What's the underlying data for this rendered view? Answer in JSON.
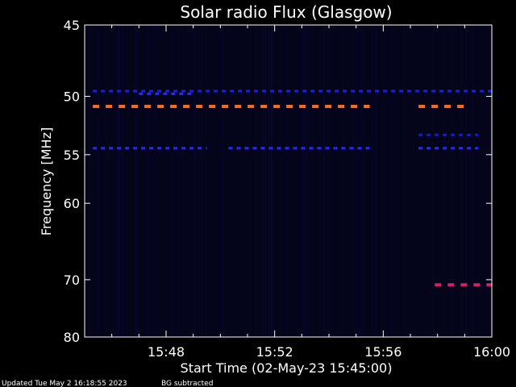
{
  "chart_data": {
    "type": "heatmap",
    "title": "Solar radio Flux (Glasgow)",
    "ylabel": "Frequency [MHz]",
    "xlabel": "Start Time (02-May-23 15:45:00)",
    "x_unit": "minutes",
    "x_range": [
      0,
      15
    ],
    "y_range": [
      45,
      80
    ],
    "y_ticks": [
      {
        "value": 45,
        "label": "45"
      },
      {
        "value": 50,
        "label": "50"
      },
      {
        "value": 55,
        "label": "55"
      },
      {
        "value": 60,
        "label": "60"
      },
      {
        "value": 70,
        "label": "70"
      },
      {
        "value": 80,
        "label": "80"
      }
    ],
    "x_ticks": [
      {
        "value": 3,
        "label": "15:48"
      },
      {
        "value": 7,
        "label": "15:52"
      },
      {
        "value": 11,
        "label": "15:56"
      },
      {
        "value": 15,
        "label": "16:00"
      }
    ],
    "bands": [
      {
        "freq": 49.6,
        "start": 0.3,
        "end": 15.0,
        "intensity": "low",
        "color": "#1a1aff"
      },
      {
        "freq": 49.8,
        "start": 2.0,
        "end": 4.0,
        "intensity": "medium",
        "color": "#2a2aff"
      },
      {
        "freq": 50.8,
        "start": 0.3,
        "end": 10.5,
        "intensity": "high",
        "color": "#ff6a1a"
      },
      {
        "freq": 50.8,
        "start": 12.3,
        "end": 14.2,
        "intensity": "high",
        "color": "#ff6a1a"
      },
      {
        "freq": 53.2,
        "start": 12.3,
        "end": 14.5,
        "intensity": "low",
        "color": "#1818cc"
      },
      {
        "freq": 54.4,
        "start": 0.3,
        "end": 4.5,
        "intensity": "medium",
        "color": "#2828ff"
      },
      {
        "freq": 54.4,
        "start": 5.3,
        "end": 10.5,
        "intensity": "medium",
        "color": "#2828ff"
      },
      {
        "freq": 54.4,
        "start": 12.3,
        "end": 14.5,
        "intensity": "medium",
        "color": "#2828ff"
      },
      {
        "freq": 70.8,
        "start": 12.9,
        "end": 15.0,
        "intensity": "high",
        "color": "#d0206a"
      }
    ],
    "background_color": "#04041a"
  },
  "footer": {
    "updated": "Updated Tue May  2 16:18:55 2023",
    "note": "BG subtracted"
  }
}
